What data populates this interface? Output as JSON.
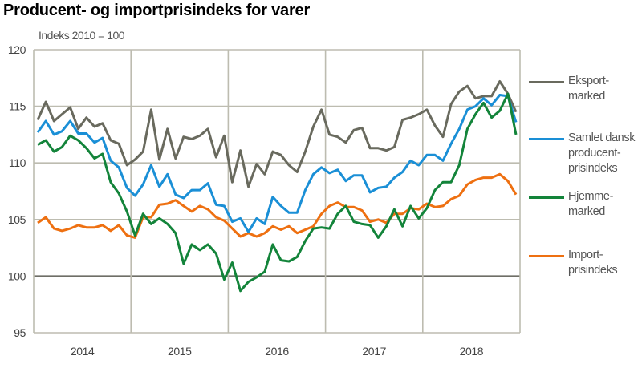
{
  "title": "Producent- og importprisindeks for varer",
  "chart_data": {
    "type": "line",
    "title": "Producent- og importprisindeks for varer",
    "ylabel": "Indeks 2010 = 100",
    "xlabel": "",
    "x_tick_labels": [
      "2014",
      "2015",
      "2016",
      "2017",
      "2018"
    ],
    "y_ticks": [
      95,
      100,
      105,
      110,
      115,
      120
    ],
    "ylim": [
      95,
      120
    ],
    "frequency": "monthly",
    "x_range": [
      "2014-01",
      "2018-12"
    ],
    "grid": true,
    "legend_position": "right",
    "series": [
      {
        "name": "Eksport-\nmarked",
        "color": "#696a5e",
        "values": [
          113.8,
          115.4,
          113.7,
          114.3,
          114.9,
          113.0,
          114.0,
          113.2,
          113.5,
          112.0,
          111.7,
          109.8,
          110.3,
          111.0,
          114.7,
          110.3,
          113.0,
          110.4,
          112.3,
          112.1,
          112.4,
          113.0,
          110.5,
          112.4,
          108.3,
          111.1,
          107.9,
          109.9,
          109.0,
          111.0,
          110.7,
          109.8,
          109.2,
          111.0,
          113.2,
          114.7,
          112.5,
          112.3,
          111.8,
          112.9,
          113.1,
          111.3,
          111.3,
          111.1,
          111.4,
          113.8,
          114.0,
          114.3,
          114.7,
          113.3,
          112.3,
          115.2,
          116.3,
          116.8,
          115.7,
          115.9,
          115.9,
          117.2,
          116.1,
          114.5
        ]
      },
      {
        "name": "Samlet dansk\nproducent-\nprisindeks",
        "color": "#1a8fd6",
        "values": [
          112.7,
          113.7,
          112.5,
          112.8,
          113.7,
          112.6,
          112.6,
          111.8,
          112.2,
          110.2,
          109.6,
          107.8,
          107.1,
          108.1,
          109.8,
          107.9,
          109.0,
          107.2,
          106.9,
          107.6,
          107.6,
          108.2,
          106.3,
          106.2,
          104.8,
          105.1,
          103.9,
          105.1,
          104.6,
          107.0,
          106.2,
          105.6,
          105.6,
          107.6,
          109.0,
          109.6,
          109.1,
          109.4,
          108.4,
          108.9,
          108.9,
          107.4,
          107.8,
          107.9,
          108.7,
          109.2,
          110.2,
          109.8,
          110.7,
          110.7,
          110.2,
          111.7,
          113.0,
          114.7,
          115.0,
          115.7,
          115.1,
          116.0,
          115.9,
          113.6
        ]
      },
      {
        "name": "Hjemme-\nmarked",
        "color": "#13843a",
        "values": [
          111.6,
          112.0,
          111.0,
          111.4,
          112.4,
          112.0,
          111.3,
          110.4,
          110.8,
          108.3,
          107.3,
          105.7,
          103.6,
          105.5,
          104.6,
          105.1,
          104.6,
          103.8,
          101.1,
          102.8,
          102.3,
          102.8,
          102.0,
          99.7,
          101.2,
          98.7,
          99.5,
          99.9,
          100.4,
          102.8,
          101.4,
          101.3,
          101.7,
          103.1,
          104.2,
          104.3,
          104.2,
          105.5,
          106.2,
          104.8,
          104.6,
          104.5,
          103.4,
          104.4,
          105.9,
          104.4,
          106.2,
          105.1,
          106.0,
          107.6,
          108.3,
          108.3,
          109.8,
          113.0,
          114.3,
          115.3,
          114.0,
          114.6,
          116.1,
          112.5
        ]
      },
      {
        "name": "Import-\nprisindeks",
        "color": "#ee7011",
        "values": [
          104.7,
          105.2,
          104.2,
          104.0,
          104.2,
          104.5,
          104.3,
          104.3,
          104.5,
          104.0,
          104.5,
          103.6,
          103.4,
          105.2,
          105.2,
          106.3,
          106.4,
          106.7,
          106.2,
          105.7,
          106.2,
          105.9,
          105.2,
          104.9,
          104.2,
          103.5,
          103.8,
          103.5,
          103.8,
          104.4,
          104.1,
          104.4,
          103.8,
          104.1,
          104.4,
          105.5,
          106.2,
          106.5,
          106.1,
          106.1,
          105.8,
          104.8,
          105.0,
          104.7,
          105.5,
          105.5,
          106.0,
          105.9,
          106.4,
          106.1,
          106.2,
          106.8,
          107.1,
          108.1,
          108.5,
          108.7,
          108.7,
          109.0,
          108.4,
          107.2
        ]
      }
    ]
  }
}
